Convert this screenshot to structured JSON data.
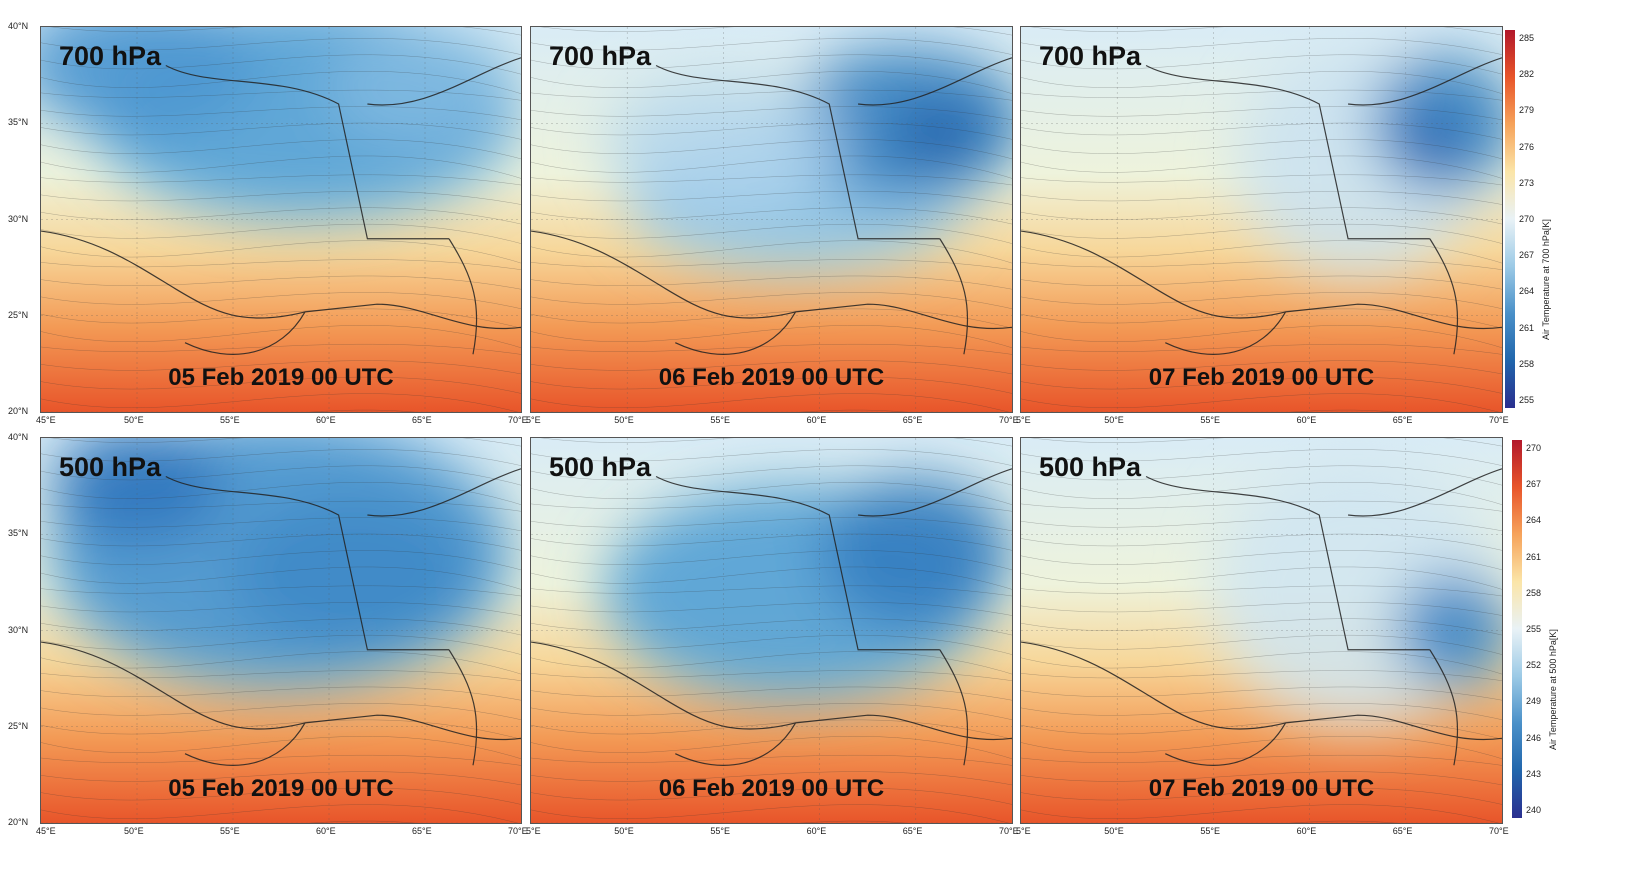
{
  "rows": [
    {
      "level_label": "700 hPa",
      "panels": [
        {
          "date": "05 Feb 2019 00 UTC"
        },
        {
          "date": "06 Feb 2019 00 UTC"
        },
        {
          "date": "07 Feb 2019 00 UTC"
        }
      ],
      "colorbar": {
        "title": "Air Temperature at 700 hPa[K]",
        "ticks": [
          "285",
          "282",
          "279",
          "276",
          "273",
          "270",
          "267",
          "264",
          "261",
          "258",
          "255"
        ]
      }
    },
    {
      "level_label": "500 hPa",
      "panels": [
        {
          "date": "05 Feb 2019 00 UTC"
        },
        {
          "date": "06 Feb 2019 00 UTC"
        },
        {
          "date": "07 Feb 2019 00 UTC"
        }
      ],
      "colorbar": {
        "title": "Air Temperature at 500 hPa[K]",
        "ticks": [
          "270",
          "267",
          "264",
          "261",
          "258",
          "255",
          "252",
          "249",
          "246",
          "243",
          "240"
        ]
      }
    }
  ],
  "axes": {
    "lat_labels": [
      "40°N",
      "35°N",
      "30°N",
      "25°N",
      "20°N"
    ],
    "lon_labels_first": [
      "45°E",
      "50°E",
      "55°E",
      "60°E",
      "65°E",
      "70°E"
    ],
    "lon_labels_other": [
      "5°E",
      "50°E",
      "55°E",
      "60°E",
      "65°E",
      "70°E"
    ]
  },
  "colors": {
    "warm": "#e8552a",
    "cold": "#2f6fb8",
    "neutral": "#f3f0c8"
  }
}
